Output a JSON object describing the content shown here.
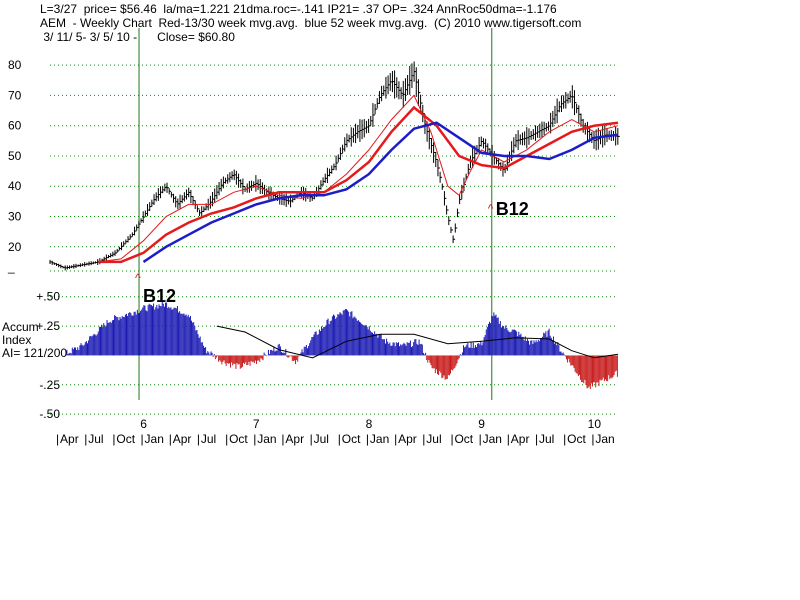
{
  "header": {
    "line1": "L=3/27  price= $56.46  la/ma=1.221 21dma.roc=-.141 IP21= .37 OP= .324 AnnRoc50dma=-1.176",
    "line2": "AEM  - Weekly Chart  Red-13/30 week mvg.avg.  blue 52 week mvg.avg.  (C) 2010 www.tigersoft.com",
    "line3": " 3/ 11/ 5- 3/ 5/ 10 -      Close= $60.80"
  },
  "colors": {
    "price_bars": "#000000",
    "ma13": "#e41a1c",
    "ma30": "#e41a1c",
    "ma52": "#1c1cc8",
    "accum_pos": "#1c1cb4",
    "accum_neg": "#c81c1c",
    "grid": "#0a8a0a",
    "signal": "#1a7a1a"
  },
  "chart_data": {
    "type": "line",
    "price_panel": {
      "ylim": [
        12,
        86
      ],
      "yticks": [
        "80",
        "70",
        "60",
        "50",
        "40",
        "30",
        "20"
      ],
      "ytick_values": [
        80,
        70,
        60,
        50,
        40,
        30,
        20
      ],
      "x_start_year": 2005.17,
      "x_end_year": 2010.21,
      "series": [
        {
          "key": "price",
          "x": [
            2005.17,
            2005.3,
            2005.45,
            2005.6,
            2005.75,
            2005.9,
            2006.0,
            2006.1,
            2006.2,
            2006.3,
            2006.4,
            2006.5,
            2006.6,
            2006.7,
            2006.8,
            2006.9,
            2007.0,
            2007.1,
            2007.2,
            2007.3,
            2007.4,
            2007.5,
            2007.6,
            2007.7,
            2007.8,
            2007.9,
            2008.0,
            2008.1,
            2008.2,
            2008.3,
            2008.4,
            2008.5,
            2008.6,
            2008.65,
            2008.7,
            2008.75,
            2008.8,
            2008.9,
            2009.0,
            2009.1,
            2009.2,
            2009.3,
            2009.4,
            2009.5,
            2009.6,
            2009.7,
            2009.8,
            2009.9,
            2010.0,
            2010.1,
            2010.21
          ],
          "y": [
            15,
            13,
            14,
            15,
            18,
            24,
            30,
            36,
            40,
            34,
            38,
            31,
            35,
            41,
            44,
            39,
            41,
            38,
            36,
            35,
            38,
            36,
            42,
            47,
            55,
            58,
            60,
            70,
            75,
            70,
            78,
            60,
            48,
            40,
            30,
            22,
            35,
            48,
            55,
            50,
            45,
            55,
            56,
            58,
            60,
            67,
            70,
            60,
            55,
            57,
            56.46
          ]
        },
        {
          "key": "ma13",
          "x": [
            2005.6,
            2005.8,
            2006.0,
            2006.2,
            2006.4,
            2006.6,
            2006.8,
            2007.0,
            2007.2,
            2007.4,
            2007.6,
            2007.8,
            2008.0,
            2008.2,
            2008.4,
            2008.55,
            2008.7,
            2008.8,
            2008.9,
            2009.0,
            2009.2,
            2009.4,
            2009.6,
            2009.8,
            2010.0,
            2010.21
          ],
          "y": [
            15,
            16,
            22,
            30,
            34,
            34,
            38,
            40,
            37,
            36,
            38,
            44,
            52,
            62,
            70,
            58,
            40,
            37,
            45,
            52,
            48,
            52,
            58,
            62,
            58,
            60
          ]
        },
        {
          "key": "ma30",
          "x": [
            2005.6,
            2005.8,
            2006.0,
            2006.2,
            2006.4,
            2006.6,
            2006.8,
            2007.0,
            2007.2,
            2007.4,
            2007.6,
            2007.8,
            2008.0,
            2008.2,
            2008.4,
            2008.6,
            2008.8,
            2009.0,
            2009.2,
            2009.4,
            2009.6,
            2009.8,
            2010.0,
            2010.21
          ],
          "y": [
            15,
            15,
            18,
            24,
            28,
            31,
            33,
            36,
            38,
            38,
            38,
            42,
            48,
            58,
            66,
            60,
            50,
            47,
            46,
            50,
            54,
            58,
            60,
            61
          ]
        },
        {
          "key": "ma52",
          "x": [
            2006.0,
            2006.2,
            2006.4,
            2006.6,
            2006.8,
            2007.0,
            2007.2,
            2007.4,
            2007.6,
            2007.8,
            2008.0,
            2008.2,
            2008.4,
            2008.6,
            2008.8,
            2009.0,
            2009.2,
            2009.4,
            2009.6,
            2009.8,
            2010.0,
            2010.21
          ],
          "y": [
            15,
            20,
            24,
            28,
            31,
            34,
            36,
            37,
            37,
            39,
            44,
            52,
            59,
            61,
            56,
            51,
            50,
            50,
            49,
            52,
            56,
            57
          ]
        }
      ]
    },
    "accum_panel": {
      "ylim": [
        -0.55,
        0.6
      ],
      "yticks": [
        "+.50",
        "+.25",
        "-.25",
        "-.50"
      ],
      "ytick_values": [
        0.5,
        0.25,
        -0.25,
        -0.5
      ],
      "label_lines": [
        "Accum",
        "Index",
        "AI= 121/200"
      ],
      "ai_x": [
        2005.17,
        2005.45,
        2005.7,
        2006.0,
        2006.2,
        2006.4,
        2006.55,
        2006.7,
        2006.85,
        2007.0,
        2007.2,
        2007.35,
        2007.5,
        2007.65,
        2007.8,
        2007.95,
        2008.15,
        2008.3,
        2008.45,
        2008.55,
        2008.7,
        2008.85,
        2009.0,
        2009.1,
        2009.2,
        2009.3,
        2009.45,
        2009.6,
        2009.7,
        2009.85,
        2009.95,
        2010.21
      ],
      "ai_y": [
        -0.05,
        0.08,
        0.3,
        0.4,
        0.44,
        0.35,
        0.05,
        -0.05,
        -0.1,
        -0.05,
        0.08,
        -0.05,
        0.15,
        0.3,
        0.38,
        0.28,
        0.12,
        0.08,
        0.12,
        -0.1,
        -0.2,
        0.08,
        0.1,
        0.35,
        0.24,
        0.2,
        0.1,
        0.2,
        0.05,
        -0.15,
        -0.28,
        -0.15
      ],
      "ma_x": [
        2006.65,
        2006.9,
        2007.2,
        2007.5,
        2007.8,
        2008.1,
        2008.4,
        2008.7,
        2009.0,
        2009.3,
        2009.6,
        2009.8,
        2010.0,
        2010.21
      ],
      "ma_y": [
        0.25,
        0.2,
        0.05,
        -0.02,
        0.12,
        0.18,
        0.18,
        0.1,
        0.12,
        0.15,
        0.14,
        0.04,
        -0.02,
        0.01
      ]
    },
    "x_axis": {
      "year_labels": [
        {
          "year": 2006,
          "label": "6"
        },
        {
          "year": 2007,
          "label": "7"
        },
        {
          "year": 2008,
          "label": "8"
        },
        {
          "year": 2009,
          "label": "9"
        },
        {
          "year": 2010,
          "label": "10"
        }
      ],
      "month_labels": [
        {
          "year": 2005.25,
          "label": "Apr"
        },
        {
          "year": 2005.5,
          "label": "Jul"
        },
        {
          "year": 2005.75,
          "label": "Oct"
        },
        {
          "year": 2006.0,
          "label": "Jan"
        },
        {
          "year": 2006.25,
          "label": "Apr"
        },
        {
          "year": 2006.5,
          "label": "Jul"
        },
        {
          "year": 2006.75,
          "label": "Oct"
        },
        {
          "year": 2007.0,
          "label": "Jan"
        },
        {
          "year": 2007.25,
          "label": "Apr"
        },
        {
          "year": 2007.5,
          "label": "Jul"
        },
        {
          "year": 2007.75,
          "label": "Oct"
        },
        {
          "year": 2008.0,
          "label": "Jan"
        },
        {
          "year": 2008.25,
          "label": "Apr"
        },
        {
          "year": 2008.5,
          "label": "Jul"
        },
        {
          "year": 2008.75,
          "label": "Oct"
        },
        {
          "year": 2009.0,
          "label": "Jan"
        },
        {
          "year": 2009.25,
          "label": "Apr"
        },
        {
          "year": 2009.5,
          "label": "Jul"
        },
        {
          "year": 2009.75,
          "label": "Oct"
        },
        {
          "year": 2010.0,
          "label": "Jan"
        }
      ]
    },
    "signals": [
      {
        "label": "B12",
        "year": 2005.96,
        "price": 13
      },
      {
        "label": "B12",
        "year": 2009.09,
        "price": 36
      }
    ]
  }
}
